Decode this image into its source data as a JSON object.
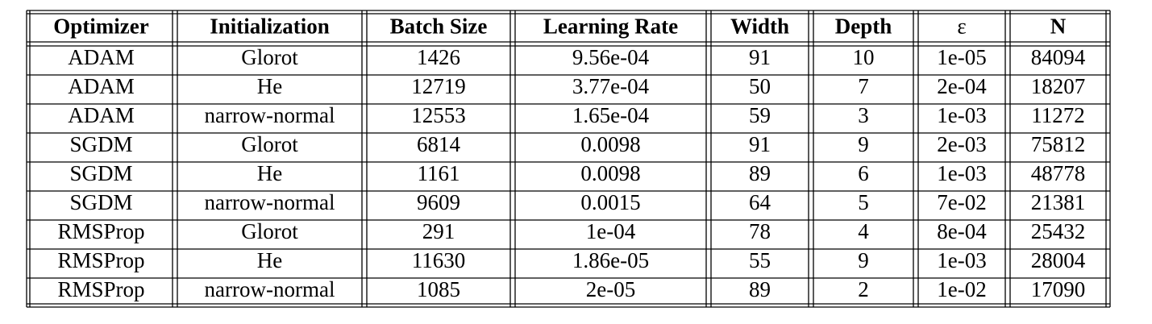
{
  "table": {
    "header": [
      "Optimizer",
      "Initialization",
      "Batch Size",
      "Learning Rate",
      "Width",
      "Depth",
      "ε",
      "N"
    ],
    "rows": [
      [
        "ADAM",
        "Glorot",
        "1426",
        "9.56e-04",
        "91",
        "10",
        "1e-05",
        "84094"
      ],
      [
        "ADAM",
        "He",
        "12719",
        "3.77e-04",
        "50",
        "7",
        "2e-04",
        "18207"
      ],
      [
        "ADAM",
        "narrow-normal",
        "12553",
        "1.65e-04",
        "59",
        "3",
        "1e-03",
        "11272"
      ],
      [
        "SGDM",
        "Glorot",
        "6814",
        "0.0098",
        "91",
        "9",
        "2e-03",
        "75812"
      ],
      [
        "SGDM",
        "He",
        "1161",
        "0.0098",
        "89",
        "6",
        "1e-03",
        "48778"
      ],
      [
        "SGDM",
        "narrow-normal",
        "9609",
        "0.0015",
        "64",
        "5",
        "7e-02",
        "21381"
      ],
      [
        "RMSProp",
        "Glorot",
        "291",
        "1e-04",
        "78",
        "4",
        "8e-04",
        "25432"
      ],
      [
        "RMSProp",
        "He",
        "11630",
        "1.86e-05",
        "55",
        "9",
        "1e-03",
        "28004"
      ],
      [
        "RMSProp",
        "narrow-normal",
        "1085",
        "2e-05",
        "89",
        "2",
        "1e-02",
        "17090"
      ]
    ]
  }
}
